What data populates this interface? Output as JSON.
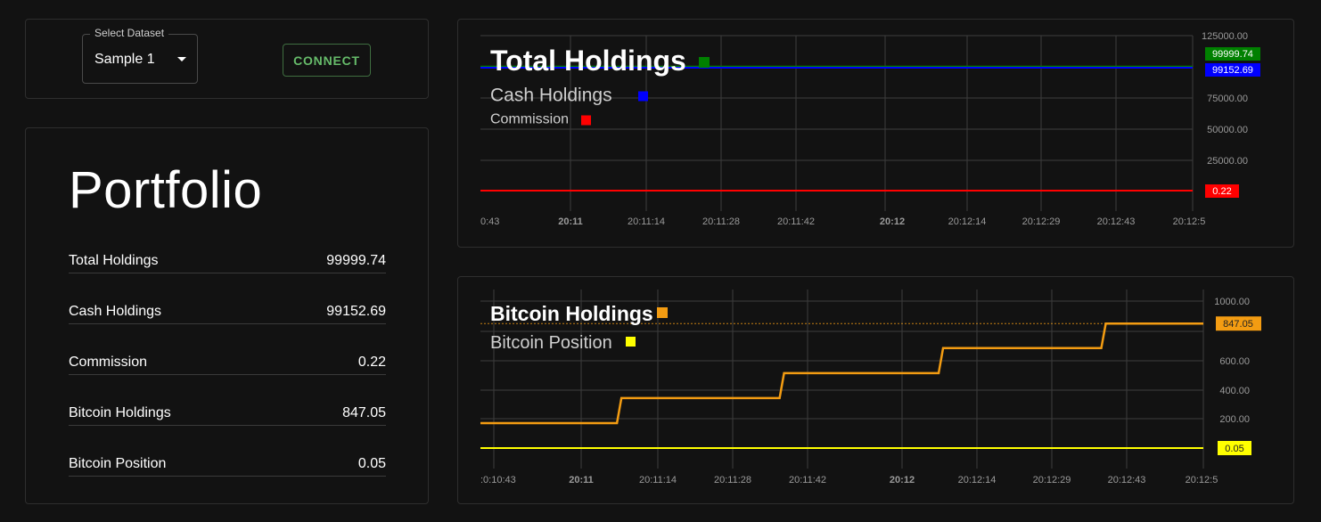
{
  "dataset": {
    "label": "Select Dataset",
    "value": "Sample 1",
    "connect_label": "CONNECT"
  },
  "portfolio": {
    "title": "Portfolio",
    "rows": [
      {
        "label": "Total Holdings",
        "value": "99999.74"
      },
      {
        "label": "Cash Holdings",
        "value": "99152.69"
      },
      {
        "label": "Commission",
        "value": "0.22"
      },
      {
        "label": "Bitcoin Holdings",
        "value": "847.05"
      },
      {
        "label": "Bitcoin Position",
        "value": "0.05"
      }
    ]
  },
  "chart_data": [
    {
      "type": "line",
      "y_ticks": [
        "125000.00",
        "75000.00",
        "50000.00",
        "25000.00"
      ],
      "x_ticks": [
        "0:43",
        "20:11",
        "20:11:14",
        "20:11:28",
        "20:11:42",
        "20:12",
        "20:12:14",
        "20:12:29",
        "20:12:43",
        "20:12:5"
      ],
      "ylim": [
        0,
        125000
      ],
      "legend_position": "top-left",
      "grid": true,
      "series": [
        {
          "name": "Total Holdings",
          "color": "#008000",
          "values": [
            99999.74,
            99999.74
          ],
          "last_label": "99999.74"
        },
        {
          "name": "Cash Holdings",
          "color": "#0000ff",
          "values": [
            99152.69,
            99152.69
          ],
          "last_label": "99152.69"
        },
        {
          "name": "Commission",
          "color": "#ff0000",
          "values": [
            0.22,
            0.22
          ],
          "last_label": "0.22"
        }
      ]
    },
    {
      "type": "line",
      "y_ticks": [
        "1000.00",
        "600.00",
        "400.00",
        "200.00"
      ],
      "x_ticks": [
        ":0:10:43",
        "20:11",
        "20:11:14",
        "20:11:28",
        "20:11:42",
        "20:12",
        "20:12:14",
        "20:12:29",
        "20:12:43",
        "20:12:5"
      ],
      "ylim": [
        0,
        1000
      ],
      "legend_position": "top-left",
      "grid": true,
      "series": [
        {
          "name": "Bitcoin Holdings",
          "color": "#f39c12",
          "last_label": "847.05",
          "steps": [
            {
              "t": 0.0,
              "v": 170
            },
            {
              "t": 0.195,
              "v": 340
            },
            {
              "t": 0.42,
              "v": 510
            },
            {
              "t": 0.64,
              "v": 680
            },
            {
              "t": 0.865,
              "v": 847.05
            }
          ]
        },
        {
          "name": "Bitcoin Position",
          "color": "#ffff00",
          "values": [
            0.05,
            0.05
          ],
          "last_label": "0.05"
        }
      ]
    }
  ]
}
